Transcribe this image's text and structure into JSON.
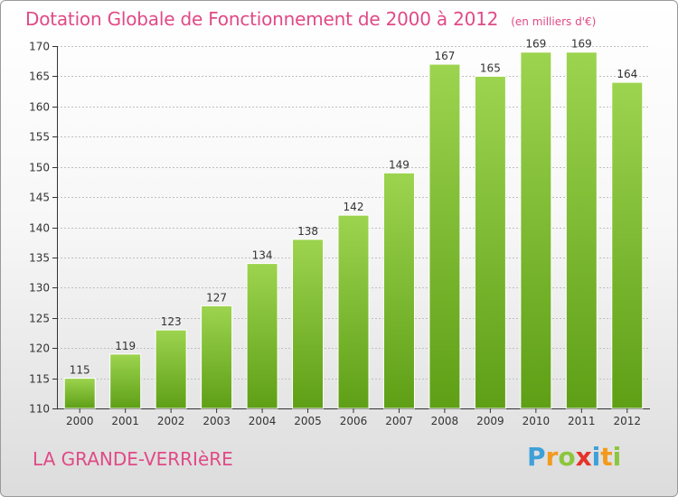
{
  "header": {
    "title": "Dotation Globale de Fonctionnement de 2000 à 2012",
    "subtitle": "(en milliers d'€)"
  },
  "footer": {
    "place": "LA GRANDE-VERRIèRE",
    "logo_text": "Proxiti"
  },
  "colors": {
    "accent": "#e04a86",
    "bar_top": "#9dd44f",
    "bar_bottom": "#5e9f16",
    "grid": "#bfbfbf"
  },
  "chart_data": {
    "type": "bar",
    "categories": [
      "2000",
      "2001",
      "2002",
      "2003",
      "2004",
      "2005",
      "2006",
      "2007",
      "2008",
      "2009",
      "2010",
      "2011",
      "2012"
    ],
    "values": [
      115,
      119,
      123,
      127,
      134,
      138,
      142,
      149,
      167,
      165,
      169,
      169,
      164
    ],
    "title": "Dotation Globale de Fonctionnement de 2000 à 2012",
    "subtitle": "(en milliers d'€)",
    "xlabel": "",
    "ylabel": "",
    "ylim": [
      110,
      170
    ],
    "yticks": [
      110,
      115,
      120,
      125,
      130,
      135,
      140,
      145,
      150,
      155,
      160,
      165,
      170
    ],
    "grid": true,
    "legend": "none"
  }
}
